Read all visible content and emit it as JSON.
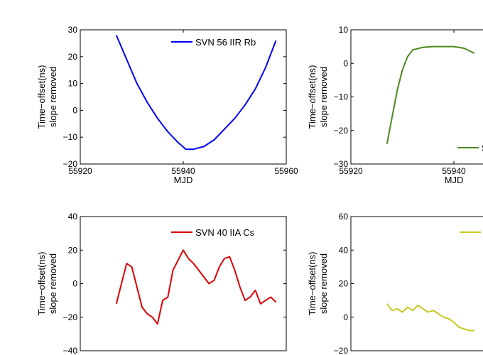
{
  "chart_data": [
    {
      "type": "line",
      "position": "top-left",
      "xlabel": "MJD",
      "ylabel": "Time−offset(ns)",
      "ylabel2": "slope removed",
      "xlim": [
        55920,
        55960
      ],
      "ylim": [
        -20,
        30
      ],
      "xticks": [
        "55920",
        "55940",
        "55960"
      ],
      "yticks": [
        "−20",
        "−10",
        "0",
        "10",
        "20",
        "30"
      ],
      "grid": false,
      "legend_placement": "top-right",
      "series": [
        {
          "name": "SVN 56 IIR Rb",
          "color": "#0000ff",
          "x": [
            55927.0,
            55929.0,
            55931.0,
            55933.0,
            55935.0,
            55937.0,
            55939.0,
            55940.5,
            55942.0,
            55944.0,
            55946.0,
            55948.0,
            55950.0,
            55952.0,
            55954.0,
            55956.0,
            55958.0
          ],
          "y": [
            28,
            19,
            10,
            3,
            -3,
            -8,
            -12,
            -14.5,
            -14.5,
            -13.5,
            -11,
            -7,
            -3,
            2,
            8,
            16,
            26
          ]
        }
      ]
    },
    {
      "type": "line",
      "position": "top-right",
      "xlabel": "MJD",
      "ylabel": "Time−offset(ns)",
      "ylabel2": "slope removed",
      "xlim": [
        55920,
        55960
      ],
      "ylim": [
        -30,
        10
      ],
      "xticks": [
        "55920",
        "55940"
      ],
      "yticks": [
        "−30",
        "−20",
        "−10",
        "0",
        "10"
      ],
      "grid": false,
      "legend_placement": "bottom-right",
      "series": [
        {
          "name": "S",
          "color": "#4a8a1e",
          "x": [
            55927.0,
            55928.0,
            55929.0,
            55930.0,
            55931.0,
            55932.0,
            55934.0,
            55936.0,
            55938.0,
            55940.0,
            55942.0,
            55944.0
          ],
          "y": [
            -24,
            -16,
            -8,
            -2,
            2,
            4,
            4.8,
            5,
            5,
            5,
            4.5,
            3
          ]
        }
      ]
    },
    {
      "type": "line",
      "position": "bottom-left",
      "xlabel": "",
      "ylabel": "Time−offset(ns)",
      "ylabel2": "slope removed",
      "xlim": [
        55920,
        55960
      ],
      "ylim": [
        -40,
        40
      ],
      "xticks": [],
      "yticks": [
        "−40",
        "−20",
        "0",
        "20",
        "40"
      ],
      "grid": false,
      "legend_placement": "top-right",
      "series": [
        {
          "name": "SVN 40 IIA Cs",
          "color": "#dd0000",
          "x": [
            55927.0,
            55928.0,
            55929.0,
            55930.0,
            55931.0,
            55932.0,
            55933.0,
            55934.0,
            55935.0,
            55936.0,
            55937.0,
            55938.0,
            55939.0,
            55940.0,
            55941.0,
            55942.0,
            55943.0,
            55944.0,
            55945.0,
            55946.0,
            55947.0,
            55948.0,
            55949.0,
            55950.0,
            55951.0,
            55952.0,
            55953.0,
            55954.0,
            55955.0,
            55956.0,
            55957.0,
            55958.0
          ],
          "y": [
            -12,
            0,
            12,
            10,
            -2,
            -14,
            -18,
            -20,
            -24,
            -10,
            -8,
            8,
            14,
            20,
            15,
            12,
            8,
            4,
            0,
            2,
            10,
            15,
            16,
            8,
            -2,
            -10,
            -8,
            -4,
            -12,
            -10,
            -8,
            -11
          ]
        }
      ]
    },
    {
      "type": "line",
      "position": "bottom-right",
      "xlabel": "",
      "ylabel": "Time−offset(ns)",
      "ylabel2": "slope removed",
      "xlim": [
        55920,
        55960
      ],
      "ylim": [
        -20,
        60
      ],
      "xticks": [],
      "yticks": [
        "−20",
        "0",
        "20",
        "40",
        "60"
      ],
      "grid": false,
      "legend_placement": "top-right",
      "series": [
        {
          "name": "",
          "color": "#c8c820",
          "x": [
            55927.0,
            55928.0,
            55929.0,
            55930.0,
            55931.0,
            55932.0,
            55933.0,
            55934.0,
            55935.0,
            55936.0,
            55937.0,
            55938.0,
            55939.0,
            55940.0,
            55941.0,
            55942.0,
            55943.0,
            55944.0
          ],
          "y": [
            8,
            4,
            5,
            3,
            6,
            4,
            7,
            5,
            3,
            4,
            2,
            0,
            -1,
            -3,
            -6,
            -7,
            -8,
            -8
          ]
        }
      ]
    }
  ]
}
